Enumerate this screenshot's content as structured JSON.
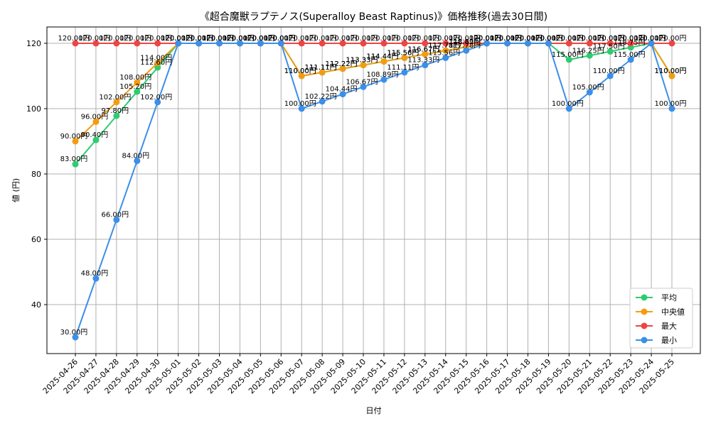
{
  "chart_data": {
    "type": "line",
    "title": "《超合魔獣ラプテノス(Superalloy Beast Raptinus)》価格推移(過去30日間)",
    "xlabel": "日付",
    "ylabel": "値 (円)",
    "ylim": [
      25,
      125
    ],
    "yticks": [
      40,
      60,
      80,
      100,
      120
    ],
    "grid": true,
    "legend_position": "bottom-right",
    "value_suffix": "円",
    "categories": [
      "2025-04-26",
      "2025-04-27",
      "2025-04-28",
      "2025-04-29",
      "2025-04-30",
      "2025-05-01",
      "2025-05-02",
      "2025-05-03",
      "2025-05-04",
      "2025-05-05",
      "2025-05-06",
      "2025-05-07",
      "2025-05-08",
      "2025-05-09",
      "2025-05-10",
      "2025-05-11",
      "2025-05-12",
      "2025-05-13",
      "2025-05-14",
      "2025-05-15",
      "2025-05-16",
      "2025-05-17",
      "2025-05-18",
      "2025-05-19",
      "2025-05-20",
      "2025-05-21",
      "2025-05-22",
      "2025-05-23",
      "2025-05-24",
      "2025-05-25"
    ],
    "series": [
      {
        "name": "平均",
        "color": "#2ecc71",
        "values": [
          83.0,
          90.4,
          97.8,
          105.2,
          112.6,
          120.0,
          120.0,
          120.0,
          120.0,
          120.0,
          120.0,
          110.0,
          111.11,
          112.22,
          113.33,
          114.44,
          115.56,
          116.67,
          117.78,
          118.89,
          120.0,
          120.0,
          120.0,
          120.0,
          115.0,
          116.25,
          117.5,
          118.75,
          120.0,
          110.0
        ]
      },
      {
        "name": "中央値",
        "color": "#f39c12",
        "values": [
          90.0,
          96.0,
          102.0,
          108.0,
          114.0,
          120.0,
          120.0,
          120.0,
          120.0,
          120.0,
          120.0,
          110.0,
          111.11,
          112.22,
          113.33,
          114.44,
          115.56,
          116.67,
          117.78,
          118.89,
          120.0,
          120.0,
          120.0,
          120.0,
          120.0,
          120.0,
          120.0,
          120.0,
          120.0,
          110.0
        ]
      },
      {
        "name": "最大",
        "color": "#ef4444",
        "values": [
          120.0,
          120.0,
          120.0,
          120.0,
          120.0,
          120.0,
          120.0,
          120.0,
          120.0,
          120.0,
          120.0,
          120.0,
          120.0,
          120.0,
          120.0,
          120.0,
          120.0,
          120.0,
          120.0,
          120.0,
          120.0,
          120.0,
          120.0,
          120.0,
          120.0,
          120.0,
          120.0,
          120.0,
          120.0,
          120.0
        ]
      },
      {
        "name": "最小",
        "color": "#3b8fe8",
        "values": [
          30.0,
          48.0,
          66.0,
          84.0,
          102.0,
          120.0,
          120.0,
          120.0,
          120.0,
          120.0,
          120.0,
          100.0,
          102.22,
          104.44,
          106.67,
          108.89,
          111.11,
          113.33,
          115.56,
          117.78,
          120.0,
          120.0,
          120.0,
          120.0,
          100.0,
          105.0,
          110.0,
          115.0,
          120.0,
          100.0
        ]
      }
    ]
  }
}
